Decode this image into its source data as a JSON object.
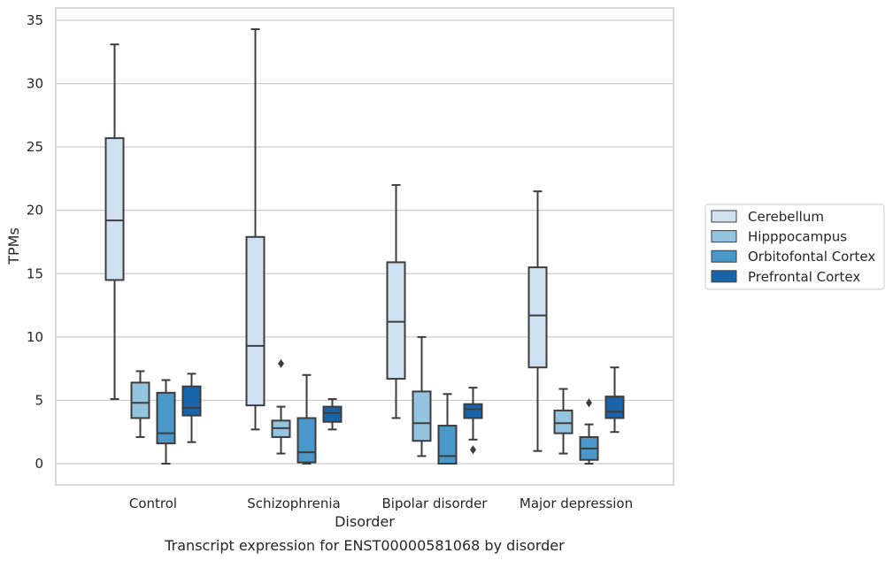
{
  "chart_data": {
    "type": "boxplot",
    "title": "",
    "caption": "Transcript expression for ENST00000581068 by disorder",
    "xlabel": "Disorder",
    "ylabel": "TPMs",
    "ylim": [
      -1.7,
      36
    ],
    "yticks": [
      0,
      5,
      10,
      15,
      20,
      25,
      30,
      35
    ],
    "grid": "horizontal",
    "legend_position": "right",
    "categories": [
      "Control",
      "Schizophrenia",
      "Bipolar disorder",
      "Major depression"
    ],
    "series": [
      {
        "name": "Cerebellum",
        "color": "#d0e1f2",
        "boxes": [
          {
            "whisker_low": 5.1,
            "q1": 14.5,
            "median": 19.2,
            "q3": 25.7,
            "whisker_high": 33.1,
            "outliers": []
          },
          {
            "whisker_low": 2.7,
            "q1": 4.6,
            "median": 9.3,
            "q3": 17.9,
            "whisker_high": 34.3,
            "outliers": []
          },
          {
            "whisker_low": 3.6,
            "q1": 6.7,
            "median": 11.2,
            "q3": 15.9,
            "whisker_high": 22.0,
            "outliers": []
          },
          {
            "whisker_low": 1.0,
            "q1": 7.6,
            "median": 11.7,
            "q3": 15.5,
            "whisker_high": 21.5,
            "outliers": []
          }
        ]
      },
      {
        "name": "Hipppocampus",
        "color": "#94c4df",
        "boxes": [
          {
            "whisker_low": 2.1,
            "q1": 3.6,
            "median": 4.8,
            "q3": 6.4,
            "whisker_high": 7.3,
            "outliers": []
          },
          {
            "whisker_low": 0.8,
            "q1": 2.1,
            "median": 2.8,
            "q3": 3.4,
            "whisker_high": 4.5,
            "outliers": [
              7.9
            ]
          },
          {
            "whisker_low": 0.6,
            "q1": 1.8,
            "median": 3.2,
            "q3": 5.7,
            "whisker_high": 10.0,
            "outliers": []
          },
          {
            "whisker_low": 0.8,
            "q1": 2.4,
            "median": 3.2,
            "q3": 4.2,
            "whisker_high": 5.9,
            "outliers": []
          }
        ]
      },
      {
        "name": "Orbitofontal Cortex",
        "color": "#4a98c9",
        "boxes": [
          {
            "whisker_low": 0.0,
            "q1": 1.6,
            "median": 2.4,
            "q3": 5.6,
            "whisker_high": 6.6,
            "outliers": []
          },
          {
            "whisker_low": 0.0,
            "q1": 0.1,
            "median": 0.9,
            "q3": 3.6,
            "whisker_high": 7.0,
            "outliers": []
          },
          {
            "whisker_low": 0.0,
            "q1": 0.0,
            "median": 0.6,
            "q3": 3.0,
            "whisker_high": 5.5,
            "outliers": []
          },
          {
            "whisker_low": 0.0,
            "q1": 0.3,
            "median": 1.2,
            "q3": 2.1,
            "whisker_high": 3.1,
            "outliers": [
              4.8
            ]
          }
        ]
      },
      {
        "name": "Prefrontal Cortex",
        "color": "#1764ab",
        "boxes": [
          {
            "whisker_low": 1.7,
            "q1": 3.8,
            "median": 4.4,
            "q3": 6.1,
            "whisker_high": 7.1,
            "outliers": []
          },
          {
            "whisker_low": 2.7,
            "q1": 3.3,
            "median": 4.0,
            "q3": 4.5,
            "whisker_high": 5.1,
            "outliers": []
          },
          {
            "whisker_low": 1.9,
            "q1": 3.6,
            "median": 4.3,
            "q3": 4.7,
            "whisker_high": 6.0,
            "outliers": [
              1.1
            ]
          },
          {
            "whisker_low": 2.5,
            "q1": 3.6,
            "median": 4.1,
            "q3": 5.3,
            "whisker_high": 7.6,
            "outliers": []
          }
        ]
      }
    ]
  }
}
